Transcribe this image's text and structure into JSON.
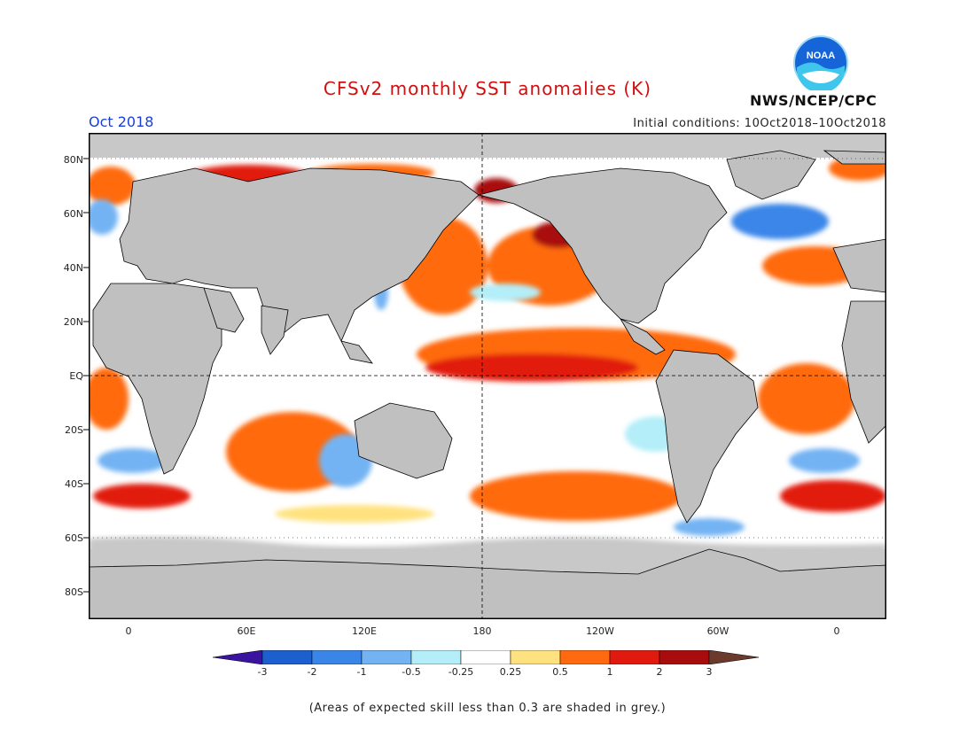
{
  "header": {
    "title": "CFSv2 monthly SST anomalies (K)",
    "period": "Oct 2018",
    "initial_conditions": "Initial conditions: 10Oct2018–10Oct2018",
    "agency": "NWS/NCEP/CPC",
    "logo_text": "NOAA"
  },
  "map": {
    "lat_labels": [
      "80N",
      "60N",
      "40N",
      "20N",
      "EQ",
      "20S",
      "40S",
      "60S",
      "80S"
    ],
    "lon_labels": [
      "0",
      "60E",
      "120E",
      "180",
      "120W",
      "60W",
      "0"
    ]
  },
  "colorbar": {
    "labels": [
      "-3",
      "-2",
      "-1",
      "-0.5",
      "-0.25",
      "0.25",
      "0.5",
      "1",
      "2",
      "3"
    ],
    "colors": [
      "#3a149e",
      "#1c5fcf",
      "#3a86e8",
      "#73b3f3",
      "#b4eef8",
      "#ffffff",
      "#ffe27f",
      "#ff6a10",
      "#e11a10",
      "#a90c0c",
      "#6b3a2c"
    ]
  },
  "footnote": "(Areas of expected skill less than 0.3 are shaded in grey.)"
}
